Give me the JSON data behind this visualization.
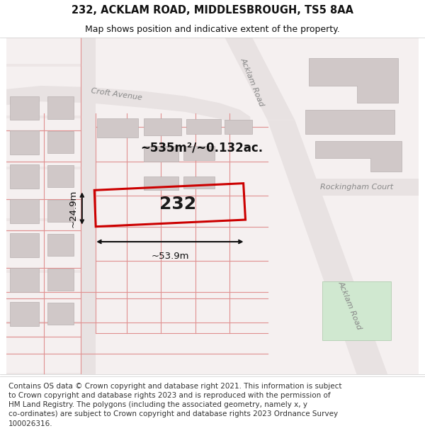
{
  "title": "232, ACKLAM ROAD, MIDDLESBROUGH, TS5 8AA",
  "subtitle": "Map shows position and indicative extent of the property.",
  "footer": "Contains OS data © Crown copyright and database right 2021. This information is subject\nto Crown copyright and database rights 2023 and is reproduced with the permission of\nHM Land Registry. The polygons (including the associated geometry, namely x, y\nco-ordinates) are subject to Crown copyright and database rights 2023 Ordnance Survey\n100026316.",
  "area_label": "~535m²/~0.132ac.",
  "property_number": "232",
  "width_label": "~53.9m",
  "height_label": "~24.9m",
  "bg_color": "#f5f0f0",
  "road_fill": "#e8e2e2",
  "building_fill": "#d0c8c8",
  "building_edge": "#b8b0b0",
  "property_color": "#cc0000",
  "green_fill": "#d0e8d0",
  "green_edge": "#a8c8a8",
  "label_color": "#888888",
  "text_color": "#111111",
  "title_fs": 10.5,
  "subtitle_fs": 9,
  "footer_fs": 7.5
}
